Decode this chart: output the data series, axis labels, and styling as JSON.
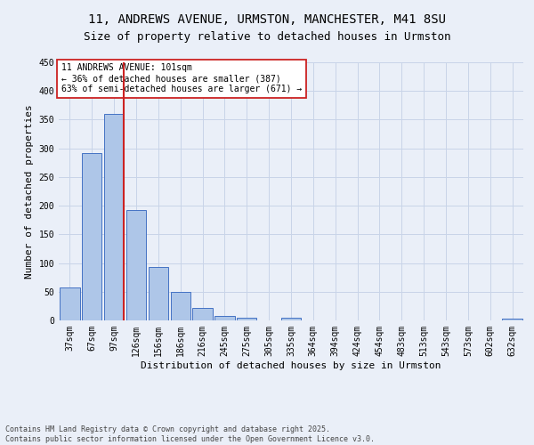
{
  "title_line1": "11, ANDREWS AVENUE, URMSTON, MANCHESTER, M41 8SU",
  "title_line2": "Size of property relative to detached houses in Urmston",
  "xlabel": "Distribution of detached houses by size in Urmston",
  "ylabel": "Number of detached properties",
  "bar_labels": [
    "37sqm",
    "67sqm",
    "97sqm",
    "126sqm",
    "156sqm",
    "186sqm",
    "216sqm",
    "245sqm",
    "275sqm",
    "305sqm",
    "335sqm",
    "364sqm",
    "394sqm",
    "424sqm",
    "454sqm",
    "483sqm",
    "513sqm",
    "543sqm",
    "573sqm",
    "602sqm",
    "632sqm"
  ],
  "bar_values": [
    57,
    292,
    360,
    193,
    93,
    49,
    21,
    8,
    4,
    0,
    4,
    0,
    0,
    0,
    0,
    0,
    0,
    0,
    0,
    0,
    3
  ],
  "bar_color": "#aec6e8",
  "bar_edge_color": "#4472c4",
  "grid_color": "#c8d4e8",
  "background_color": "#eaeff8",
  "vline_color": "#cc2222",
  "annotation_text": "11 ANDREWS AVENUE: 101sqm\n← 36% of detached houses are smaller (387)\n63% of semi-detached houses are larger (671) →",
  "annotation_box_color": "#ffffff",
  "annotation_box_edge": "#cc2222",
  "ylim": [
    0,
    450
  ],
  "yticks": [
    0,
    50,
    100,
    150,
    200,
    250,
    300,
    350,
    400,
    450
  ],
  "footnote_line1": "Contains HM Land Registry data © Crown copyright and database right 2025.",
  "footnote_line2": "Contains public sector information licensed under the Open Government Licence v3.0.",
  "title_fontsize": 10,
  "subtitle_fontsize": 9,
  "axis_label_fontsize": 8,
  "tick_fontsize": 7,
  "annotation_fontsize": 7,
  "footnote_fontsize": 6
}
